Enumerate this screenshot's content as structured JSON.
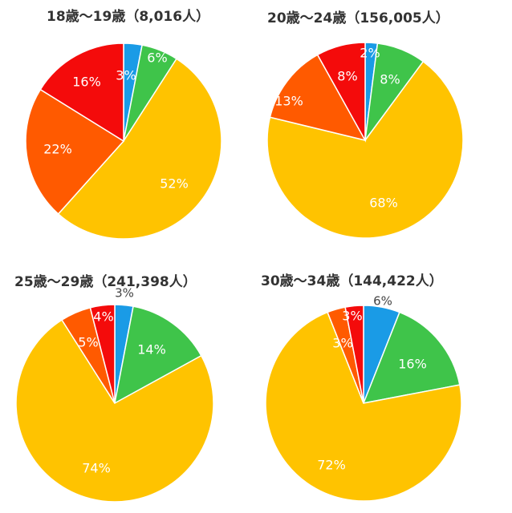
{
  "colors": {
    "blue": "#1a9be6",
    "green": "#3fc44a",
    "yellow": "#ffc300",
    "orange": "#ff5a00",
    "red": "#f40b0b"
  },
  "chart_data": [
    {
      "type": "pie",
      "title": "18歳〜19歳（8,016人）",
      "slices": [
        {
          "value": 3,
          "label": "3%",
          "color": "#1a9be6"
        },
        {
          "value": 6,
          "label": "6%",
          "color": "#3fc44a"
        },
        {
          "value": 52,
          "label": "52%",
          "color": "#ffc300"
        },
        {
          "value": 22,
          "label": "22%",
          "color": "#ff5a00"
        },
        {
          "value": 16,
          "label": "16%",
          "color": "#f40b0b"
        }
      ]
    },
    {
      "type": "pie",
      "title": "20歳〜24歳（156,005人）",
      "slices": [
        {
          "value": 2,
          "label": "2%",
          "color": "#1a9be6"
        },
        {
          "value": 8,
          "label": "8%",
          "color": "#3fc44a"
        },
        {
          "value": 68,
          "label": "68%",
          "color": "#ffc300"
        },
        {
          "value": 13,
          "label": "13%",
          "color": "#ff5a00"
        },
        {
          "value": 8,
          "label": "8%",
          "color": "#f40b0b"
        }
      ]
    },
    {
      "type": "pie",
      "title": "25歳〜29歳（241,398人）",
      "slices": [
        {
          "value": 3,
          "label": "3%",
          "color": "#1a9be6"
        },
        {
          "value": 14,
          "label": "14%",
          "color": "#3fc44a"
        },
        {
          "value": 74,
          "label": "74%",
          "color": "#ffc300"
        },
        {
          "value": 5,
          "label": "5%",
          "color": "#ff5a00"
        },
        {
          "value": 4,
          "label": "4%",
          "color": "#f40b0b"
        }
      ]
    },
    {
      "type": "pie",
      "title": "30歳〜34歳（144,422人）",
      "slices": [
        {
          "value": 6,
          "label": "6%",
          "color": "#1a9be6"
        },
        {
          "value": 16,
          "label": "16%",
          "color": "#3fc44a"
        },
        {
          "value": 72,
          "label": "72%",
          "color": "#ffc300"
        },
        {
          "value": 3,
          "label": "3%",
          "color": "#ff5a00"
        },
        {
          "value": 3,
          "label": "3%",
          "color": "#f40b0b"
        }
      ]
    }
  ]
}
